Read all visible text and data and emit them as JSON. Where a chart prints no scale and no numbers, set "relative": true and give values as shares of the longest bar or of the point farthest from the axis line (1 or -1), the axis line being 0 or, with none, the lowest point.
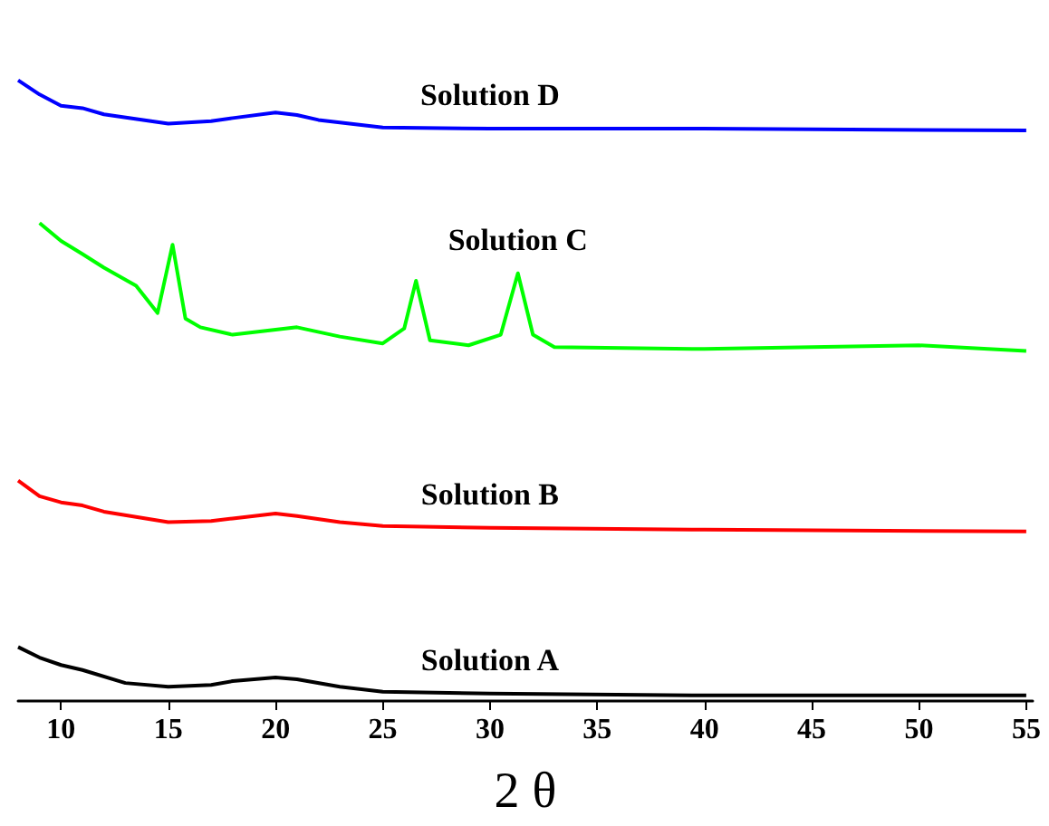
{
  "chart_data": {
    "type": "line",
    "relative": true,
    "xlabel": "2 θ",
    "xlim": [
      8,
      55.3
    ],
    "xticks": [
      10,
      15,
      20,
      25,
      30,
      35,
      40,
      45,
      50,
      55
    ],
    "grid": false,
    "legend": false,
    "marker": "none",
    "line_style": "solid",
    "tick_labels": "x",
    "series": [
      {
        "name": "Solution A",
        "color": "#000000",
        "x": [
          8,
          9,
          10,
          11,
          13,
          15,
          17,
          18,
          20,
          21,
          23,
          25,
          30,
          40,
          55
        ],
        "values": [
          0.087,
          0.07,
          0.058,
          0.05,
          0.029,
          0.023,
          0.026,
          0.032,
          0.038,
          0.035,
          0.023,
          0.015,
          0.012,
          0.009,
          0.009
        ]
      },
      {
        "name": "Solution B",
        "color": "#ff0000",
        "x": [
          8,
          9,
          10,
          11,
          12,
          15,
          17,
          18,
          20,
          21,
          23,
          25,
          30,
          40,
          55
        ],
        "values": [
          0.355,
          0.33,
          0.32,
          0.315,
          0.305,
          0.288,
          0.29,
          0.294,
          0.302,
          0.298,
          0.288,
          0.282,
          0.279,
          0.276,
          0.273
        ]
      },
      {
        "name": "Solution C",
        "color": "#00ff00",
        "x": [
          9,
          10,
          11,
          12,
          13.5,
          14.5,
          15.2,
          15.8,
          16.5,
          18,
          21,
          23,
          25,
          26,
          26.55,
          27.2,
          29,
          30.5,
          31.3,
          32,
          33,
          40,
          50,
          55
        ],
        "values": [
          0.77,
          0.741,
          0.72,
          0.698,
          0.669,
          0.625,
          0.735,
          0.616,
          0.602,
          0.59,
          0.602,
          0.587,
          0.576,
          0.6,
          0.677,
          0.581,
          0.573,
          0.59,
          0.689,
          0.59,
          0.57,
          0.567,
          0.573,
          0.564
        ]
      },
      {
        "name": "Solution D",
        "color": "#0000ff",
        "x": [
          8,
          9,
          10,
          11,
          12,
          15,
          17,
          18,
          20,
          21,
          22,
          25,
          30,
          40,
          55
        ],
        "values": [
          1,
          0.977,
          0.959,
          0.955,
          0.945,
          0.93,
          0.934,
          0.939,
          0.948,
          0.944,
          0.936,
          0.924,
          0.922,
          0.922,
          0.919
        ]
      }
    ]
  }
}
